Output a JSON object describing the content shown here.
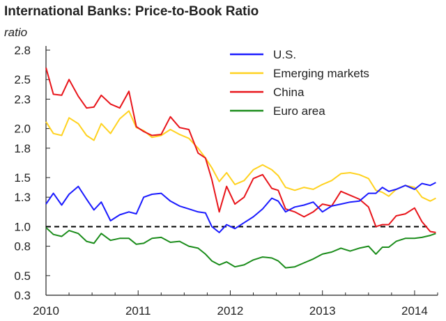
{
  "chart_data": {
    "type": "line",
    "title": "International Banks: Price-to-Book Ratio",
    "ylabel": "ratio",
    "xlabel": "",
    "ylim": [
      0.3,
      2.8
    ],
    "yticks": [
      "0.3",
      "0.5",
      "0.8",
      "1.0",
      "1.3",
      "1.5",
      "1.8",
      "2.0",
      "2.3",
      "2.5",
      "2.8"
    ],
    "xlim": [
      2010.0,
      2014.25
    ],
    "xticks": [
      "2010",
      "2011",
      "2012",
      "2013",
      "2014"
    ],
    "legend_position": "top-right",
    "reference_line": {
      "y": 1.0,
      "style": "dashed",
      "color": "#000000"
    },
    "series": [
      {
        "name": "U.S.",
        "color": "#1a1aff",
        "x": [
          2010.0,
          2010.08,
          2010.17,
          2010.25,
          2010.35,
          2010.44,
          2010.52,
          2010.6,
          2010.7,
          2010.8,
          2010.9,
          2010.98,
          2011.06,
          2011.15,
          2011.25,
          2011.35,
          2011.45,
          2011.55,
          2011.65,
          2011.73,
          2011.8,
          2011.88,
          2011.96,
          2012.05,
          2012.15,
          2012.25,
          2012.35,
          2012.45,
          2012.52,
          2012.6,
          2012.7,
          2012.8,
          2012.9,
          2013.0,
          2013.1,
          2013.2,
          2013.3,
          2013.4,
          2013.5,
          2013.58,
          2013.65,
          2013.72,
          2013.8,
          2013.9,
          2014.0,
          2014.08,
          2014.17,
          2014.23
        ],
        "values": [
          1.23,
          1.34,
          1.22,
          1.33,
          1.41,
          1.28,
          1.17,
          1.25,
          1.06,
          1.12,
          1.15,
          1.13,
          1.3,
          1.33,
          1.34,
          1.26,
          1.21,
          1.18,
          1.15,
          1.14,
          1.0,
          0.94,
          1.02,
          0.98,
          1.04,
          1.1,
          1.18,
          1.29,
          1.26,
          1.15,
          1.2,
          1.22,
          1.25,
          1.15,
          1.21,
          1.23,
          1.25,
          1.26,
          1.34,
          1.34,
          1.4,
          1.36,
          1.38,
          1.42,
          1.38,
          1.44,
          1.42,
          1.45
        ]
      },
      {
        "name": "Emerging markets",
        "color": "#ffd21f",
        "x": [
          2010.0,
          2010.08,
          2010.17,
          2010.25,
          2010.35,
          2010.44,
          2010.52,
          2010.6,
          2010.7,
          2010.8,
          2010.9,
          2010.98,
          2011.06,
          2011.15,
          2011.25,
          2011.35,
          2011.45,
          2011.55,
          2011.65,
          2011.73,
          2011.8,
          2011.88,
          2011.96,
          2012.05,
          2012.15,
          2012.25,
          2012.35,
          2012.45,
          2012.52,
          2012.6,
          2012.7,
          2012.8,
          2012.9,
          2013.0,
          2013.1,
          2013.2,
          2013.3,
          2013.4,
          2013.5,
          2013.58,
          2013.65,
          2013.72,
          2013.8,
          2013.9,
          2014.0,
          2014.08,
          2014.17,
          2014.23
        ],
        "values": [
          2.07,
          1.95,
          1.93,
          2.11,
          2.05,
          1.93,
          1.88,
          2.05,
          1.95,
          2.1,
          2.18,
          2.01,
          1.98,
          1.91,
          1.93,
          1.99,
          1.94,
          1.9,
          1.8,
          1.7,
          1.6,
          1.46,
          1.55,
          1.43,
          1.47,
          1.58,
          1.63,
          1.58,
          1.52,
          1.4,
          1.37,
          1.4,
          1.38,
          1.43,
          1.47,
          1.54,
          1.55,
          1.53,
          1.49,
          1.37,
          1.35,
          1.31,
          1.38,
          1.42,
          1.4,
          1.3,
          1.26,
          1.29
        ]
      },
      {
        "name": "China",
        "color": "#e8141a",
        "x": [
          2010.0,
          2010.08,
          2010.17,
          2010.25,
          2010.35,
          2010.44,
          2010.52,
          2010.6,
          2010.7,
          2010.8,
          2010.9,
          2010.98,
          2011.06,
          2011.15,
          2011.25,
          2011.35,
          2011.45,
          2011.55,
          2011.65,
          2011.73,
          2011.8,
          2011.88,
          2011.96,
          2012.05,
          2012.15,
          2012.25,
          2012.35,
          2012.45,
          2012.52,
          2012.6,
          2012.7,
          2012.8,
          2012.9,
          2013.0,
          2013.1,
          2013.2,
          2013.3,
          2013.4,
          2013.5,
          2013.58,
          2013.65,
          2013.72,
          2013.8,
          2013.9,
          2014.0,
          2014.08,
          2014.17,
          2014.23
        ],
        "values": [
          2.62,
          2.35,
          2.34,
          2.5,
          2.33,
          2.21,
          2.22,
          2.34,
          2.25,
          2.21,
          2.38,
          2.02,
          1.97,
          1.93,
          1.94,
          2.12,
          2.01,
          1.99,
          1.75,
          1.7,
          1.48,
          1.15,
          1.41,
          1.23,
          1.3,
          1.49,
          1.53,
          1.39,
          1.37,
          1.18,
          1.15,
          1.1,
          1.15,
          1.23,
          1.21,
          1.36,
          1.32,
          1.28,
          1.2,
          1.0,
          1.02,
          1.02,
          1.11,
          1.13,
          1.19,
          1.05,
          0.95,
          0.94
        ]
      },
      {
        "name": "Euro area",
        "color": "#1a8c1a",
        "x": [
          2010.0,
          2010.08,
          2010.17,
          2010.25,
          2010.35,
          2010.44,
          2010.52,
          2010.6,
          2010.7,
          2010.8,
          2010.9,
          2010.98,
          2011.06,
          2011.15,
          2011.25,
          2011.35,
          2011.45,
          2011.55,
          2011.65,
          2011.73,
          2011.8,
          2011.88,
          2011.96,
          2012.05,
          2012.15,
          2012.25,
          2012.35,
          2012.45,
          2012.52,
          2012.6,
          2012.7,
          2012.8,
          2012.9,
          2013.0,
          2013.1,
          2013.2,
          2013.3,
          2013.4,
          2013.5,
          2013.58,
          2013.65,
          2013.72,
          2013.8,
          2013.9,
          2014.0,
          2014.08,
          2014.17,
          2014.23
        ],
        "values": [
          0.99,
          0.92,
          0.9,
          0.96,
          0.93,
          0.85,
          0.83,
          0.93,
          0.86,
          0.88,
          0.88,
          0.82,
          0.83,
          0.88,
          0.89,
          0.84,
          0.85,
          0.8,
          0.78,
          0.72,
          0.65,
          0.61,
          0.64,
          0.59,
          0.61,
          0.66,
          0.69,
          0.68,
          0.65,
          0.58,
          0.59,
          0.63,
          0.67,
          0.72,
          0.74,
          0.78,
          0.75,
          0.78,
          0.8,
          0.72,
          0.79,
          0.79,
          0.85,
          0.88,
          0.88,
          0.89,
          0.91,
          0.93
        ]
      }
    ]
  }
}
